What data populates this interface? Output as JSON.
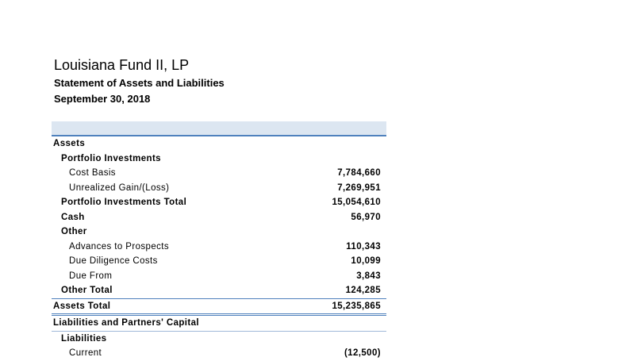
{
  "header": {
    "title": "Louisiana Fund II, LP",
    "subtitle": "Statement of Assets and Liabilities",
    "date": "September 30, 2018"
  },
  "rows": [
    {
      "label": "Assets",
      "value": ""
    },
    {
      "label": "Portfolio Investments",
      "value": ""
    },
    {
      "label": "Cost Basis",
      "value": "7,784,660"
    },
    {
      "label": "Unrealized Gain/(Loss)",
      "value": "7,269,951"
    },
    {
      "label": "Portfolio Investments Total",
      "value": "15,054,610"
    },
    {
      "label": "Cash",
      "value": "56,970"
    },
    {
      "label": "Other",
      "value": ""
    },
    {
      "label": "Advances to Prospects",
      "value": "110,343"
    },
    {
      "label": "Due Diligence Costs",
      "value": "10,099"
    },
    {
      "label": "Due From",
      "value": "3,843"
    },
    {
      "label": "Other Total",
      "value": "124,285"
    },
    {
      "label": "Assets Total",
      "value": "15,235,865"
    },
    {
      "label": "Liabilities and Partners' Capital",
      "value": ""
    },
    {
      "label": "Liabilities",
      "value": ""
    },
    {
      "label": "Current",
      "value": "(12,500)"
    }
  ]
}
